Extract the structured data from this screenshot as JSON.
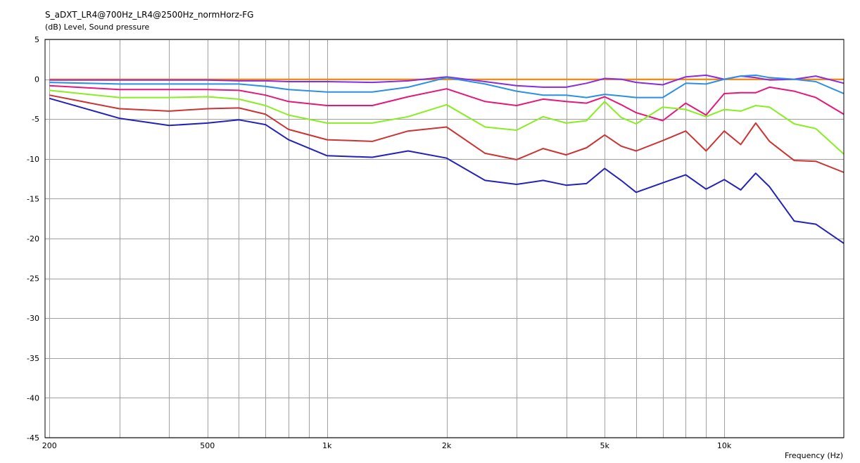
{
  "chart_data": {
    "type": "line",
    "title": "S_aDXT_LR4@700Hz_LR4@2500Hz_normHorz-FG",
    "ylabel": "(dB)  Level, Sound pressure",
    "xlabel": "Frequency  (Hz)",
    "x_scale": "log",
    "xlim": [
      195,
      20000
    ],
    "ylim": [
      -45,
      5
    ],
    "y_ticks": [
      5,
      0,
      -5,
      -10,
      -15,
      -20,
      -25,
      -30,
      -35,
      -40,
      -45
    ],
    "y_tick_labels": [
      "5",
      "0",
      "-5",
      "-10",
      "-15",
      "-20",
      "-25",
      "-30",
      "-35",
      "-40",
      "-45"
    ],
    "x_ticks": [
      200,
      500,
      1000,
      2000,
      5000,
      10000
    ],
    "x_tick_labels": [
      "200",
      "500",
      "1k",
      "2k",
      "5k",
      "10k"
    ],
    "grid": true,
    "x": [
      200,
      300,
      400,
      500,
      600,
      700,
      800,
      1000,
      1300,
      1600,
      2000,
      2500,
      3000,
      3500,
      4000,
      4500,
      5000,
      5500,
      6000,
      7000,
      8000,
      9000,
      10000,
      11000,
      12000,
      13000,
      15000,
      17000,
      20000
    ],
    "series": [
      {
        "color": "#ff8800",
        "values": [
          0,
          0,
          0,
          0,
          0,
          0,
          0,
          0,
          0,
          0,
          0,
          0,
          0,
          0,
          0,
          0,
          0,
          0,
          0,
          0,
          0,
          0,
          0,
          0,
          0,
          0,
          0,
          0,
          0
        ]
      },
      {
        "color": "#8a2be2",
        "values": [
          -0.1,
          -0.1,
          -0.1,
          -0.1,
          -0.2,
          -0.2,
          -0.3,
          -0.3,
          -0.4,
          -0.2,
          0.3,
          -0.3,
          -0.8,
          -1.0,
          -1.0,
          -0.5,
          0.1,
          0.0,
          -0.4,
          -0.7,
          0.3,
          0.5,
          0.0,
          0.4,
          0.2,
          -0.1,
          0.0,
          0.4,
          -0.5
        ]
      },
      {
        "color": "#2b8fe8",
        "values": [
          -0.4,
          -0.6,
          -0.6,
          -0.6,
          -0.6,
          -0.9,
          -1.3,
          -1.6,
          -1.6,
          -1.0,
          0.2,
          -0.6,
          -1.5,
          -2.0,
          -2.0,
          -2.3,
          -1.9,
          -2.1,
          -2.3,
          -2.3,
          -0.5,
          -0.6,
          0.0,
          0.4,
          0.5,
          0.2,
          0.0,
          -0.3,
          -1.8
        ]
      },
      {
        "color": "#e6177a",
        "values": [
          -0.8,
          -1.3,
          -1.3,
          -1.3,
          -1.4,
          -2.0,
          -2.8,
          -3.3,
          -3.3,
          -2.2,
          -1.2,
          -2.8,
          -3.3,
          -2.5,
          -2.8,
          -3.0,
          -2.2,
          -3.2,
          -4.2,
          -5.2,
          -3.0,
          -4.5,
          -1.8,
          -1.7,
          -1.7,
          -1.0,
          -1.5,
          -2.3,
          -4.4
        ]
      },
      {
        "color": "#88ee22",
        "values": [
          -1.4,
          -2.3,
          -2.3,
          -2.2,
          -2.5,
          -3.3,
          -4.5,
          -5.5,
          -5.5,
          -4.7,
          -3.2,
          -6.0,
          -6.4,
          -4.7,
          -5.5,
          -5.2,
          -2.8,
          -4.8,
          -5.6,
          -3.5,
          -3.8,
          -4.7,
          -3.8,
          -4.0,
          -3.3,
          -3.5,
          -5.6,
          -6.2,
          -9.4
        ]
      },
      {
        "color": "#cc3333",
        "values": [
          -2.0,
          -3.7,
          -4.0,
          -3.7,
          -3.6,
          -4.4,
          -6.3,
          -7.6,
          -7.8,
          -6.5,
          -6.0,
          -9.3,
          -10.1,
          -8.7,
          -9.5,
          -8.6,
          -7.0,
          -8.4,
          -9.0,
          -7.7,
          -6.5,
          -9.0,
          -6.5,
          -8.2,
          -5.5,
          -7.8,
          -10.2,
          -10.3,
          -11.7
        ]
      },
      {
        "color": "#2222bb",
        "values": [
          -2.4,
          -4.9,
          -5.8,
          -5.5,
          -5.1,
          -5.7,
          -7.6,
          -9.6,
          -9.8,
          -9.0,
          -9.9,
          -12.7,
          -13.2,
          -12.7,
          -13.3,
          -13.1,
          -11.2,
          -12.7,
          -14.2,
          -13.0,
          -12.0,
          -13.8,
          -12.6,
          -13.9,
          -11.8,
          -13.5,
          -17.8,
          -18.2,
          -20.6
        ]
      }
    ]
  }
}
